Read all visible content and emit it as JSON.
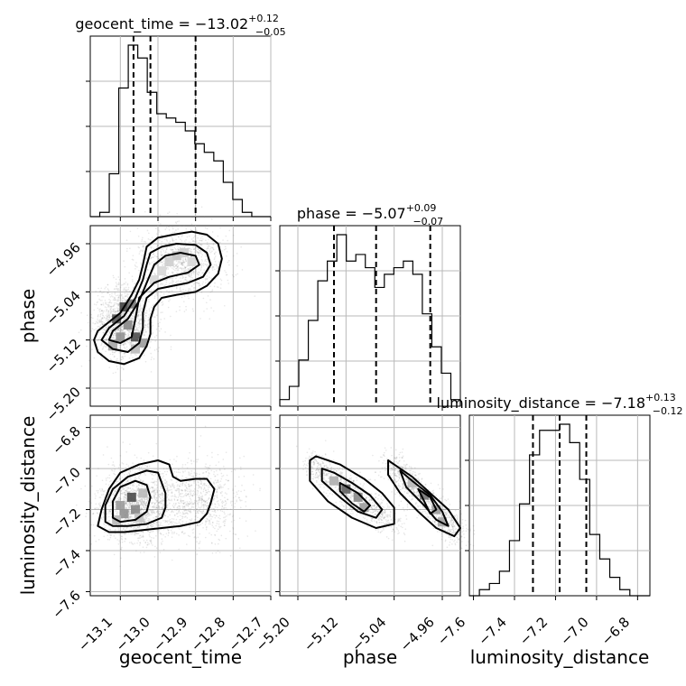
{
  "chart_data": {
    "type": "corner",
    "parameters": [
      {
        "name": "geocent_time",
        "title_main": "geocent_time = −13.02",
        "title_sup": "+0.12",
        "title_sub": "−0.05",
        "xlim": [
          -13.18,
          -12.7
        ],
        "ticks": [
          -13.1,
          -13.0,
          -12.9,
          -12.8,
          -12.7
        ],
        "tick_labels": [
          "−13.1",
          "−13.0",
          "−12.9",
          "−12.8",
          "−12.7"
        ],
        "quantiles": [
          -13.065,
          -13.02,
          -12.9
        ],
        "hist_counts": [
          0,
          1,
          10,
          30,
          40,
          37,
          29,
          24,
          23,
          22,
          20,
          17,
          15,
          13,
          8,
          4,
          1,
          0,
          0
        ]
      },
      {
        "name": "phase",
        "title_main": "phase = −5.07",
        "title_sup": "+0.09",
        "title_sub": "−0.07",
        "xlim": [
          -5.23,
          -4.93
        ],
        "ticks": [
          -5.2,
          -5.12,
          -5.04,
          -4.96
        ],
        "tick_labels": [
          "−5.20",
          "−5.12",
          "−5.04",
          "−4.96"
        ],
        "quantiles": [
          -5.14,
          -5.07,
          -4.98
        ],
        "hist_counts": [
          1,
          3,
          7,
          13,
          19,
          22,
          26,
          22,
          23,
          21,
          18,
          20,
          21,
          22,
          20,
          14,
          9,
          5,
          1
        ]
      },
      {
        "name": "luminosity_distance",
        "title_main": "luminosity_distance = −7.18",
        "title_sup": "+0.13",
        "title_sub": "−0.12",
        "xlim": [
          -7.62,
          -6.74
        ],
        "ticks": [
          -7.6,
          -7.4,
          -7.2,
          -7.0,
          -6.8
        ],
        "tick_labels": [
          "−7.6",
          "−7.4",
          "−7.2",
          "−7.0",
          "−6.8"
        ],
        "quantiles": [
          -7.31,
          -7.18,
          -7.05
        ],
        "hist_counts": [
          0,
          1,
          2,
          4,
          9,
          15,
          23,
          27,
          27,
          28,
          25,
          19,
          10,
          6,
          3,
          1,
          0,
          0
        ]
      }
    ],
    "y_axes": {
      "phase": {
        "ylim": [
          -5.23,
          -4.93
        ],
        "ticks": [
          -5.2,
          -5.12,
          -5.04,
          -4.96
        ],
        "tick_labels": [
          "−5.20",
          "−5.12",
          "−5.04",
          "−4.96"
        ]
      },
      "luminosity_distance": {
        "ylim": [
          -7.62,
          -6.74
        ],
        "ticks": [
          -7.6,
          -7.4,
          -7.2,
          -7.0,
          -6.8
        ],
        "tick_labels": [
          "−7.6",
          "−7.4",
          "−7.2",
          "−7.0",
          "−6.8"
        ]
      }
    },
    "pairs": [
      {
        "x": "geocent_time",
        "y": "phase",
        "contours": [
          [
            [
              -13.14,
              -5.095
            ],
            [
              -13.1,
              -5.075
            ],
            [
              -13.07,
              -5.045
            ],
            [
              -13.05,
              -5.02
            ],
            [
              -13.04,
              -4.995
            ],
            [
              -13.03,
              -4.965
            ],
            [
              -13.0,
              -4.95
            ],
            [
              -12.96,
              -4.945
            ],
            [
              -12.91,
              -4.94
            ],
            [
              -12.87,
              -4.945
            ],
            [
              -12.84,
              -4.96
            ],
            [
              -12.83,
              -4.985
            ],
            [
              -12.84,
              -5.01
            ],
            [
              -12.87,
              -5.03
            ],
            [
              -12.9,
              -5.04
            ],
            [
              -12.95,
              -5.045
            ],
            [
              -12.99,
              -5.05
            ],
            [
              -13.01,
              -5.065
            ],
            [
              -13.02,
              -5.085
            ],
            [
              -13.02,
              -5.11
            ],
            [
              -13.03,
              -5.13
            ],
            [
              -13.05,
              -5.15
            ],
            [
              -13.09,
              -5.16
            ],
            [
              -13.13,
              -5.155
            ],
            [
              -13.16,
              -5.14
            ],
            [
              -13.17,
              -5.12
            ],
            [
              -13.16,
              -5.105
            ]
          ],
          [
            [
              -13.13,
              -5.1
            ],
            [
              -13.09,
              -5.08
            ],
            [
              -13.06,
              -5.05
            ],
            [
              -13.04,
              -5.02
            ],
            [
              -13.03,
              -4.995
            ],
            [
              -13.02,
              -4.975
            ],
            [
              -12.99,
              -4.965
            ],
            [
              -12.95,
              -4.96
            ],
            [
              -12.9,
              -4.962
            ],
            [
              -12.87,
              -4.975
            ],
            [
              -12.86,
              -4.995
            ],
            [
              -12.88,
              -5.015
            ],
            [
              -12.92,
              -5.025
            ],
            [
              -12.96,
              -5.03
            ],
            [
              -13.0,
              -5.035
            ],
            [
              -13.03,
              -5.05
            ],
            [
              -13.04,
              -5.075
            ],
            [
              -13.04,
              -5.1
            ],
            [
              -13.05,
              -5.125
            ],
            [
              -13.08,
              -5.14
            ],
            [
              -13.12,
              -5.135
            ],
            [
              -13.15,
              -5.12
            ]
          ],
          [
            [
              -13.12,
              -5.105
            ],
            [
              -13.08,
              -5.085
            ],
            [
              -13.05,
              -5.055
            ],
            [
              -13.03,
              -5.025
            ],
            [
              -13.01,
              -4.995
            ],
            [
              -12.98,
              -4.98
            ],
            [
              -12.94,
              -4.975
            ],
            [
              -12.9,
              -4.98
            ],
            [
              -12.89,
              -4.995
            ],
            [
              -12.92,
              -5.008
            ],
            [
              -12.97,
              -5.015
            ],
            [
              -13.01,
              -5.025
            ],
            [
              -13.05,
              -5.05
            ],
            [
              -13.06,
              -5.085
            ],
            [
              -13.07,
              -5.115
            ],
            [
              -13.1,
              -5.125
            ],
            [
              -13.13,
              -5.12
            ]
          ]
        ],
        "dense_cells": [
          [
            -13.09,
            -5.065,
            0.95
          ],
          [
            -13.07,
            -5.06,
            0.7
          ],
          [
            -13.11,
            -5.085,
            0.85
          ],
          [
            -13.08,
            -5.095,
            0.6
          ],
          [
            -13.06,
            -5.115,
            0.9
          ],
          [
            -13.1,
            -5.115,
            0.55
          ],
          [
            -13.12,
            -5.13,
            0.45
          ],
          [
            -13.04,
            -5.125,
            0.5
          ],
          [
            -13.06,
            -5.135,
            0.35
          ],
          [
            -12.95,
            -4.98,
            0.3
          ],
          [
            -12.93,
            -4.975,
            0.25
          ],
          [
            -12.97,
            -4.99,
            0.25
          ],
          [
            -12.91,
            -4.99,
            0.2
          ],
          [
            -12.99,
            -5.005,
            0.2
          ],
          [
            -13.01,
            -5.02,
            0.2
          ]
        ],
        "scatter_seed": 7,
        "scatter_blobs": [
          {
            "cx": -13.09,
            "cy": -5.09,
            "sx": 0.04,
            "sy": 0.03,
            "n": 1300
          },
          {
            "cx": -12.94,
            "cy": -4.99,
            "sx": 0.06,
            "sy": 0.03,
            "n": 1000
          }
        ]
      },
      {
        "x": "geocent_time",
        "y": "luminosity_distance",
        "contours": [
          [
            [
              -13.16,
              -7.28
            ],
            [
              -13.15,
              -7.2
            ],
            [
              -13.13,
              -7.1
            ],
            [
              -13.1,
              -7.02
            ],
            [
              -13.05,
              -6.98
            ],
            [
              -13.0,
              -6.96
            ],
            [
              -12.97,
              -6.98
            ],
            [
              -12.96,
              -7.04
            ],
            [
              -12.94,
              -7.06
            ],
            [
              -12.9,
              -7.05
            ],
            [
              -12.87,
              -7.05
            ],
            [
              -12.85,
              -7.1
            ],
            [
              -12.86,
              -7.17
            ],
            [
              -12.87,
              -7.22
            ],
            [
              -12.89,
              -7.26
            ],
            [
              -12.94,
              -7.28
            ],
            [
              -12.99,
              -7.29
            ],
            [
              -13.04,
              -7.3
            ],
            [
              -13.09,
              -7.31
            ],
            [
              -13.13,
              -7.31
            ]
          ],
          [
            [
              -13.14,
              -7.26
            ],
            [
              -13.14,
              -7.18
            ],
            [
              -13.12,
              -7.1
            ],
            [
              -13.08,
              -7.04
            ],
            [
              -13.03,
              -7.01
            ],
            [
              -13.0,
              -7.02
            ],
            [
              -12.99,
              -7.07
            ],
            [
              -12.98,
              -7.12
            ],
            [
              -12.98,
              -7.19
            ],
            [
              -12.99,
              -7.24
            ],
            [
              -13.03,
              -7.27
            ],
            [
              -13.08,
              -7.28
            ],
            [
              -13.12,
              -7.28
            ]
          ],
          [
            [
              -13.12,
              -7.24
            ],
            [
              -13.12,
              -7.16
            ],
            [
              -13.1,
              -7.09
            ],
            [
              -13.06,
              -7.06
            ],
            [
              -13.03,
              -7.08
            ],
            [
              -13.02,
              -7.14
            ],
            [
              -13.03,
              -7.21
            ],
            [
              -13.06,
              -7.25
            ],
            [
              -13.1,
              -7.26
            ]
          ]
        ],
        "dense_cells": [
          [
            -13.07,
            -7.14,
            0.9
          ],
          [
            -13.1,
            -7.18,
            0.5
          ],
          [
            -13.09,
            -7.22,
            0.55
          ],
          [
            -13.06,
            -7.2,
            0.6
          ],
          [
            -13.04,
            -7.12,
            0.35
          ],
          [
            -13.11,
            -7.25,
            0.35
          ],
          [
            -13.05,
            -7.24,
            0.3
          ]
        ],
        "scatter_seed": 13,
        "scatter_blobs": [
          {
            "cx": -13.06,
            "cy": -7.18,
            "sx": 0.05,
            "sy": 0.09,
            "n": 1500
          },
          {
            "cx": -12.9,
            "cy": -7.16,
            "sx": 0.06,
            "sy": 0.09,
            "n": 900
          }
        ]
      },
      {
        "x": "phase",
        "y": "luminosity_distance",
        "contours": [
          [
            [
              -5.18,
              -6.96
            ],
            [
              -5.17,
              -6.94
            ],
            [
              -5.13,
              -6.98
            ],
            [
              -5.09,
              -7.05
            ],
            [
              -5.06,
              -7.12
            ],
            [
              -5.04,
              -7.19
            ],
            [
              -5.04,
              -7.27
            ],
            [
              -5.07,
              -7.29
            ],
            [
              -5.11,
              -7.24
            ],
            [
              -5.15,
              -7.16
            ],
            [
              -5.18,
              -7.06
            ]
          ],
          [
            [
              -5.16,
              -7.0
            ],
            [
              -5.14,
              -7.02
            ],
            [
              -5.11,
              -7.07
            ],
            [
              -5.08,
              -7.13
            ],
            [
              -5.06,
              -7.2
            ],
            [
              -5.07,
              -7.24
            ],
            [
              -5.1,
              -7.21
            ],
            [
              -5.13,
              -7.14
            ],
            [
              -5.16,
              -7.06
            ]
          ],
          [
            [
              -5.13,
              -7.07
            ],
            [
              -5.1,
              -7.12
            ],
            [
              -5.08,
              -7.18
            ],
            [
              -5.09,
              -7.21
            ],
            [
              -5.11,
              -7.17
            ],
            [
              -5.13,
              -7.11
            ]
          ],
          [
            [
              -5.05,
              -6.96
            ],
            [
              -5.04,
              -6.98
            ],
            [
              -5.01,
              -7.04
            ],
            [
              -4.98,
              -7.12
            ],
            [
              -4.95,
              -7.2
            ],
            [
              -4.93,
              -7.29
            ],
            [
              -4.94,
              -7.33
            ],
            [
              -4.97,
              -7.29
            ],
            [
              -5.0,
              -7.21
            ],
            [
              -5.03,
              -7.12
            ],
            [
              -5.05,
              -7.03
            ]
          ],
          [
            [
              -5.03,
              -7.01
            ],
            [
              -5.01,
              -7.06
            ],
            [
              -4.98,
              -7.13
            ],
            [
              -4.96,
              -7.21
            ],
            [
              -4.95,
              -7.28
            ],
            [
              -4.97,
              -7.25
            ],
            [
              -4.99,
              -7.18
            ],
            [
              -5.02,
              -7.09
            ]
          ],
          [
            [
              -5.0,
              -7.1
            ],
            [
              -4.98,
              -7.14
            ],
            [
              -4.97,
              -7.2
            ],
            [
              -4.98,
              -7.22
            ],
            [
              -4.99,
              -7.16
            ]
          ]
        ],
        "dense_cells": [
          [
            -5.12,
            -7.1,
            0.8
          ],
          [
            -5.1,
            -7.14,
            0.6
          ],
          [
            -5.09,
            -7.19,
            0.5
          ],
          [
            -5.14,
            -7.06,
            0.4
          ],
          [
            -4.99,
            -7.13,
            0.7
          ],
          [
            -4.97,
            -7.2,
            0.5
          ],
          [
            -4.96,
            -7.26,
            0.45
          ],
          [
            -5.01,
            -7.07,
            0.35
          ]
        ],
        "scatter_seed": 29,
        "scatter_bands": [
          {
            "x0": -5.18,
            "y0": -6.96,
            "x1": -5.04,
            "y1": -7.28,
            "w": 0.012,
            "n": 900
          },
          {
            "x0": -5.05,
            "y0": -6.97,
            "x1": -4.93,
            "y1": -7.33,
            "w": 0.012,
            "n": 900
          }
        ]
      }
    ]
  }
}
